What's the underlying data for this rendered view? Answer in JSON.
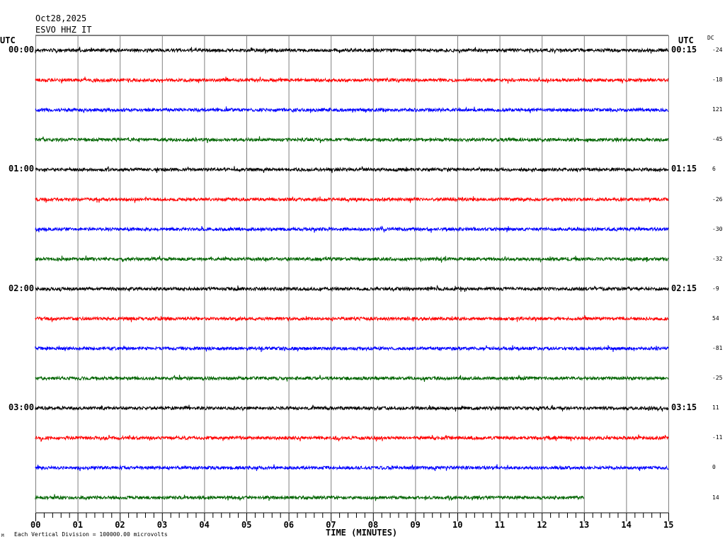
{
  "header": {
    "date": "Oct28,2025",
    "station": "ESVO HHZ IT"
  },
  "left_axis_title": "UTC",
  "right_axis_title": "UTC",
  "dc_title": "DC",
  "footer": {
    "scale_note": "Each Vertical Division = 100000.00 microvolts",
    "corner_mark": "M"
  },
  "chart_data": {
    "type": "line",
    "title": "",
    "xlabel": "TIME (MINUTES)",
    "xlim": [
      0,
      15
    ],
    "x_tick_labels": [
      "00",
      "01",
      "02",
      "03",
      "04",
      "05",
      "06",
      "07",
      "08",
      "09",
      "10",
      "11",
      "12",
      "13",
      "14",
      "15"
    ],
    "minor_ticks_per_minute": 5,
    "grid": "vertical lines each minute",
    "trace_colors": [
      "#000000",
      "#ff0000",
      "#0000ff",
      "#006400"
    ],
    "left_labels": [
      {
        "row": 0,
        "label": "00:00"
      },
      {
        "row": 4,
        "label": "01:00"
      },
      {
        "row": 8,
        "label": "02:00"
      },
      {
        "row": 12,
        "label": "03:00"
      }
    ],
    "right_labels": [
      {
        "row": 0,
        "label": "00:15"
      },
      {
        "row": 4,
        "label": "01:15"
      },
      {
        "row": 8,
        "label": "02:15"
      },
      {
        "row": 12,
        "label": "03:15"
      }
    ],
    "rows": 16,
    "minutes_per_row": 15,
    "dc_offsets": [
      -24,
      -18,
      121,
      -45,
      6,
      -26,
      -30,
      -32,
      -9,
      54,
      -81,
      -25,
      11,
      -11,
      0,
      14
    ],
    "last_row_end_minute": 13
  }
}
